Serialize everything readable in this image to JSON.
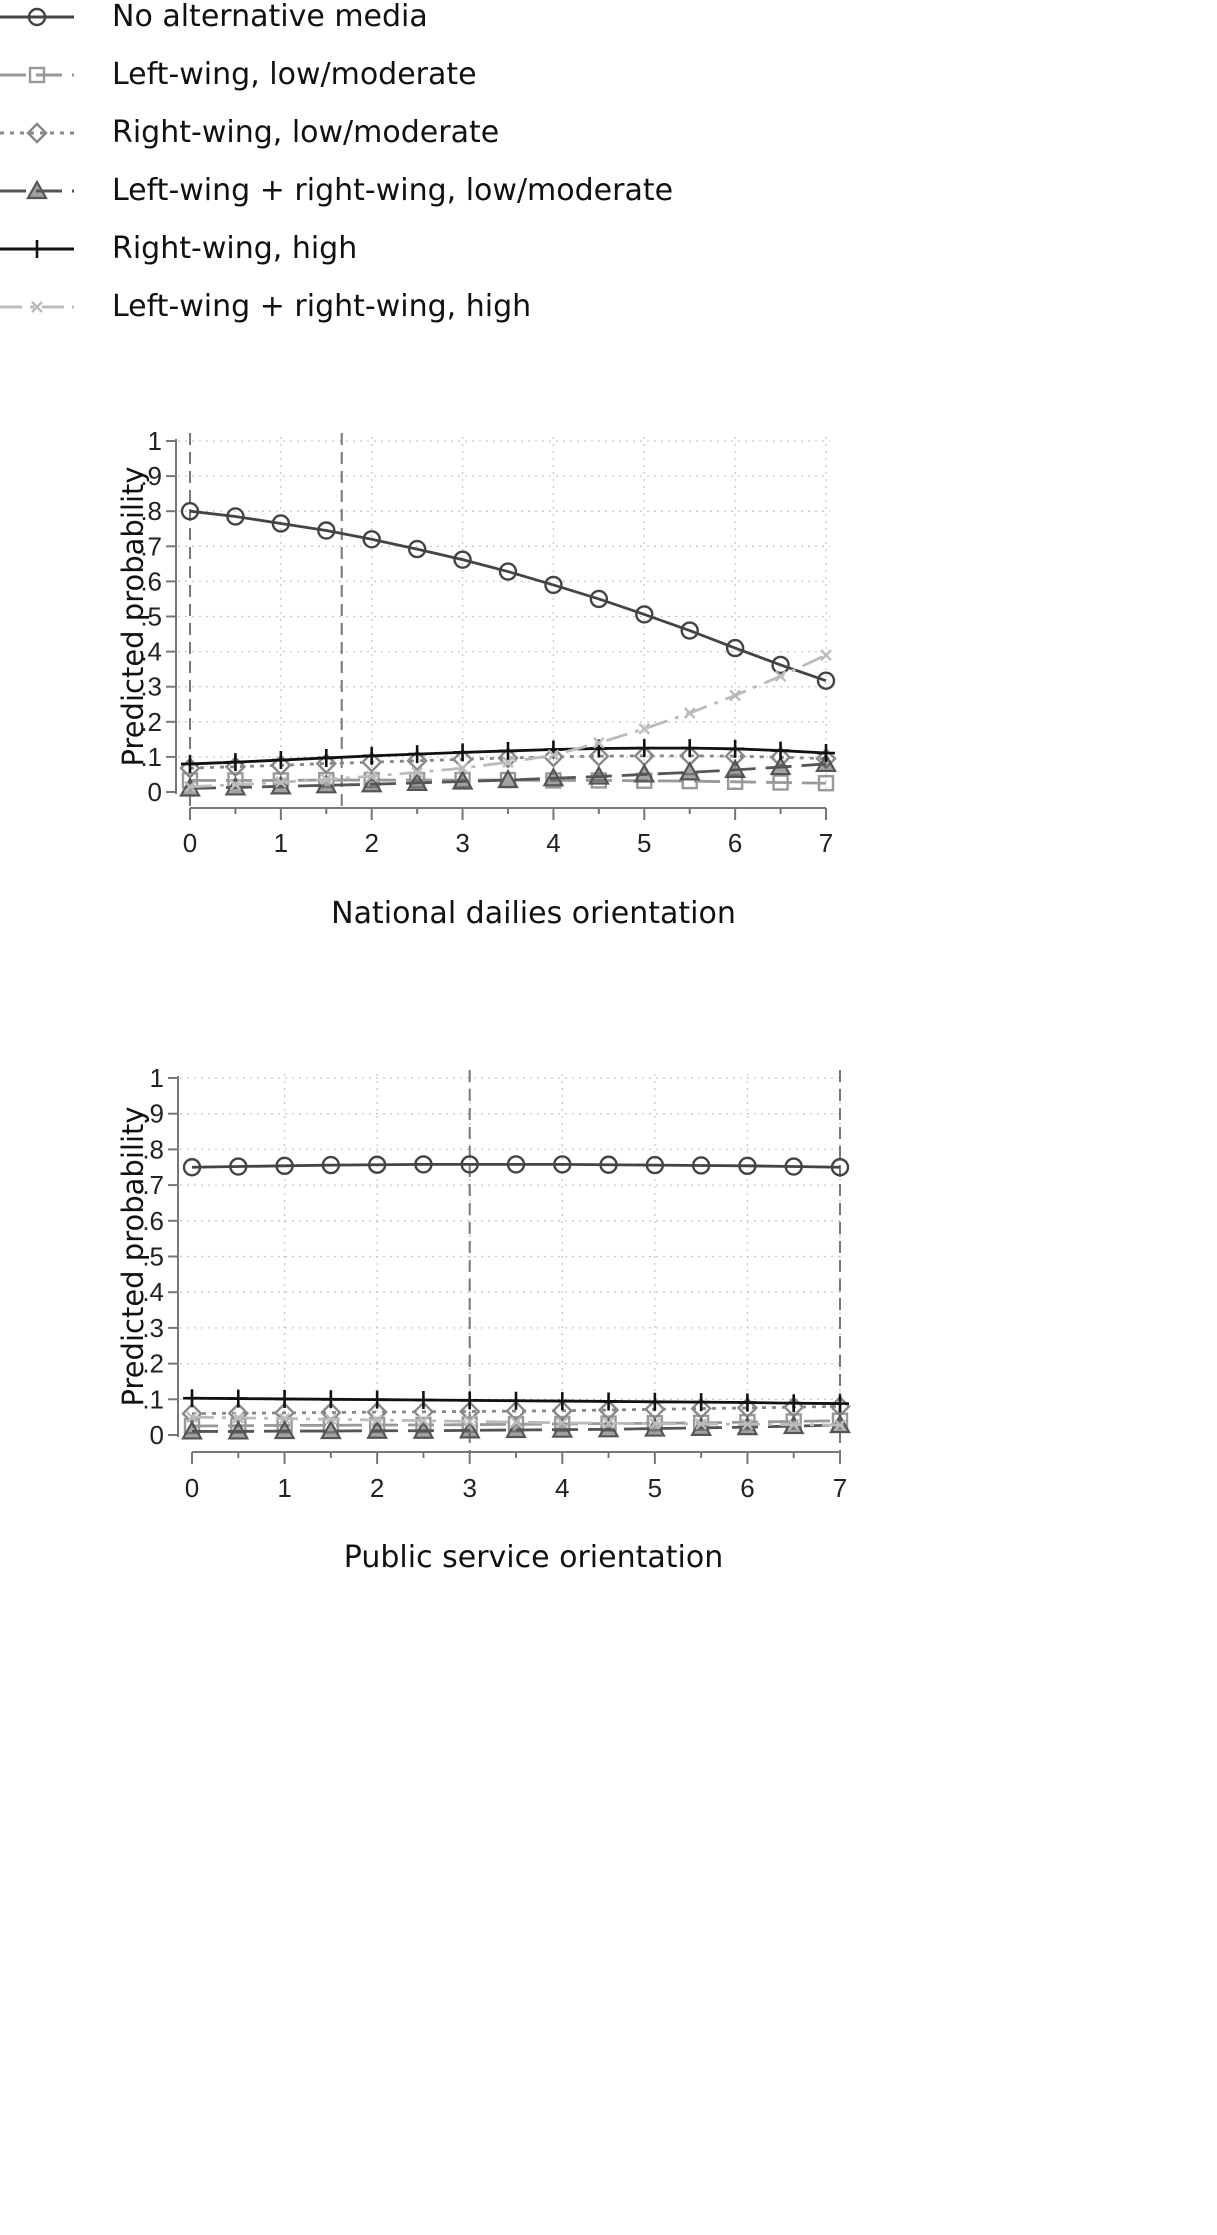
{
  "legend": [
    {
      "label": "No alternative media",
      "marker": "circle",
      "dash": "solid",
      "color": "#444444"
    },
    {
      "label": "Left-wing, low/moderate",
      "marker": "square",
      "dash": "longdash",
      "color": "#999999"
    },
    {
      "label": "Right-wing, low/moderate",
      "marker": "diamond",
      "dash": "dot",
      "color": "#888888"
    },
    {
      "label": "Left-wing + right-wing, low/moderate",
      "marker": "triangle",
      "dash": "longdash",
      "color": "#555555"
    },
    {
      "label": "Right-wing, high",
      "marker": "plus",
      "dash": "solid",
      "color": "#111111"
    },
    {
      "label": "Left-wing + right-wing, high",
      "marker": "x",
      "dash": "dashdot",
      "color": "#bbbbbb"
    }
  ],
  "chart_data": [
    {
      "type": "line",
      "xlabel": "National dailies orientation",
      "ylabel": "Predicted probability",
      "xlim": [
        0,
        7
      ],
      "ylim": [
        0,
        1
      ],
      "x": [
        0,
        0.5,
        1,
        1.5,
        2,
        2.5,
        3,
        3.5,
        4,
        4.5,
        5,
        5.5,
        6,
        6.5,
        7
      ],
      "x_ticks": [
        "0",
        "1",
        "2",
        "3",
        "4",
        "5",
        "6",
        "7"
      ],
      "y_ticks": [
        "0",
        ".1",
        ".2",
        ".3",
        ".4",
        ".5",
        ".6",
        ".7",
        ".8",
        ".9",
        "1"
      ],
      "reference_lines_x": [
        0,
        1.67
      ],
      "grid": true,
      "series": [
        {
          "name": "No alternative media",
          "values": [
            0.8,
            0.785,
            0.765,
            0.745,
            0.72,
            0.692,
            0.662,
            0.628,
            0.59,
            0.55,
            0.506,
            0.46,
            0.41,
            0.362,
            0.317
          ]
        },
        {
          "name": "Left-wing, low/moderate",
          "values": [
            0.033,
            0.033,
            0.033,
            0.034,
            0.034,
            0.034,
            0.034,
            0.034,
            0.033,
            0.033,
            0.032,
            0.031,
            0.029,
            0.027,
            0.025
          ]
        },
        {
          "name": "Right-wing, low/moderate",
          "values": [
            0.068,
            0.072,
            0.076,
            0.081,
            0.085,
            0.089,
            0.093,
            0.097,
            0.1,
            0.102,
            0.103,
            0.103,
            0.102,
            0.099,
            0.095
          ]
        },
        {
          "name": "Left-wing + right-wing, low/moderate",
          "values": [
            0.01,
            0.013,
            0.016,
            0.019,
            0.022,
            0.026,
            0.03,
            0.034,
            0.039,
            0.044,
            0.05,
            0.056,
            0.063,
            0.071,
            0.08
          ]
        },
        {
          "name": "Right-wing, high",
          "values": [
            0.08,
            0.085,
            0.091,
            0.097,
            0.103,
            0.108,
            0.113,
            0.117,
            0.121,
            0.124,
            0.125,
            0.125,
            0.123,
            0.118,
            0.111
          ]
        },
        {
          "name": "Left-wing + right-wing, high",
          "values": [
            0.015,
            0.021,
            0.028,
            0.036,
            0.045,
            0.056,
            0.068,
            0.085,
            0.105,
            0.14,
            0.18,
            0.225,
            0.275,
            0.33,
            0.39
          ]
        }
      ]
    },
    {
      "type": "line",
      "xlabel": "Public service orientation",
      "ylabel": "Predicted probability",
      "xlim": [
        0,
        7
      ],
      "ylim": [
        0,
        1
      ],
      "x": [
        0,
        0.5,
        1,
        1.5,
        2,
        2.5,
        3,
        3.5,
        4,
        4.5,
        5,
        5.5,
        6,
        6.5,
        7
      ],
      "x_ticks": [
        "0",
        "1",
        "2",
        "3",
        "4",
        "5",
        "6",
        "7"
      ],
      "y_ticks": [
        "0",
        ".1",
        ".2",
        ".3",
        ".4",
        ".5",
        ".6",
        ".7",
        ".8",
        ".9",
        "1"
      ],
      "reference_lines_x": [
        3,
        7
      ],
      "grid": true,
      "series": [
        {
          "name": "No alternative media",
          "values": [
            0.75,
            0.752,
            0.754,
            0.756,
            0.757,
            0.758,
            0.758,
            0.758,
            0.758,
            0.757,
            0.756,
            0.755,
            0.754,
            0.752,
            0.75
          ]
        },
        {
          "name": "Left-wing, low/moderate",
          "values": [
            0.025,
            0.026,
            0.027,
            0.027,
            0.028,
            0.028,
            0.029,
            0.03,
            0.031,
            0.032,
            0.033,
            0.034,
            0.036,
            0.038,
            0.04
          ]
        },
        {
          "name": "Right-wing, low/moderate",
          "values": [
            0.06,
            0.061,
            0.062,
            0.063,
            0.064,
            0.065,
            0.066,
            0.067,
            0.068,
            0.07,
            0.072,
            0.074,
            0.076,
            0.078,
            0.08
          ]
        },
        {
          "name": "Left-wing + right-wing, low/moderate",
          "values": [
            0.01,
            0.01,
            0.011,
            0.011,
            0.012,
            0.012,
            0.013,
            0.014,
            0.015,
            0.016,
            0.018,
            0.02,
            0.022,
            0.025,
            0.028
          ]
        },
        {
          "name": "Right-wing, high",
          "values": [
            0.103,
            0.102,
            0.101,
            0.1,
            0.099,
            0.098,
            0.097,
            0.096,
            0.095,
            0.094,
            0.093,
            0.092,
            0.091,
            0.089,
            0.088
          ]
        },
        {
          "name": "Left-wing + right-wing, high",
          "values": [
            0.05,
            0.048,
            0.046,
            0.044,
            0.042,
            0.04,
            0.038,
            0.036,
            0.034,
            0.033,
            0.032,
            0.031,
            0.03,
            0.029,
            0.028
          ]
        }
      ]
    }
  ]
}
